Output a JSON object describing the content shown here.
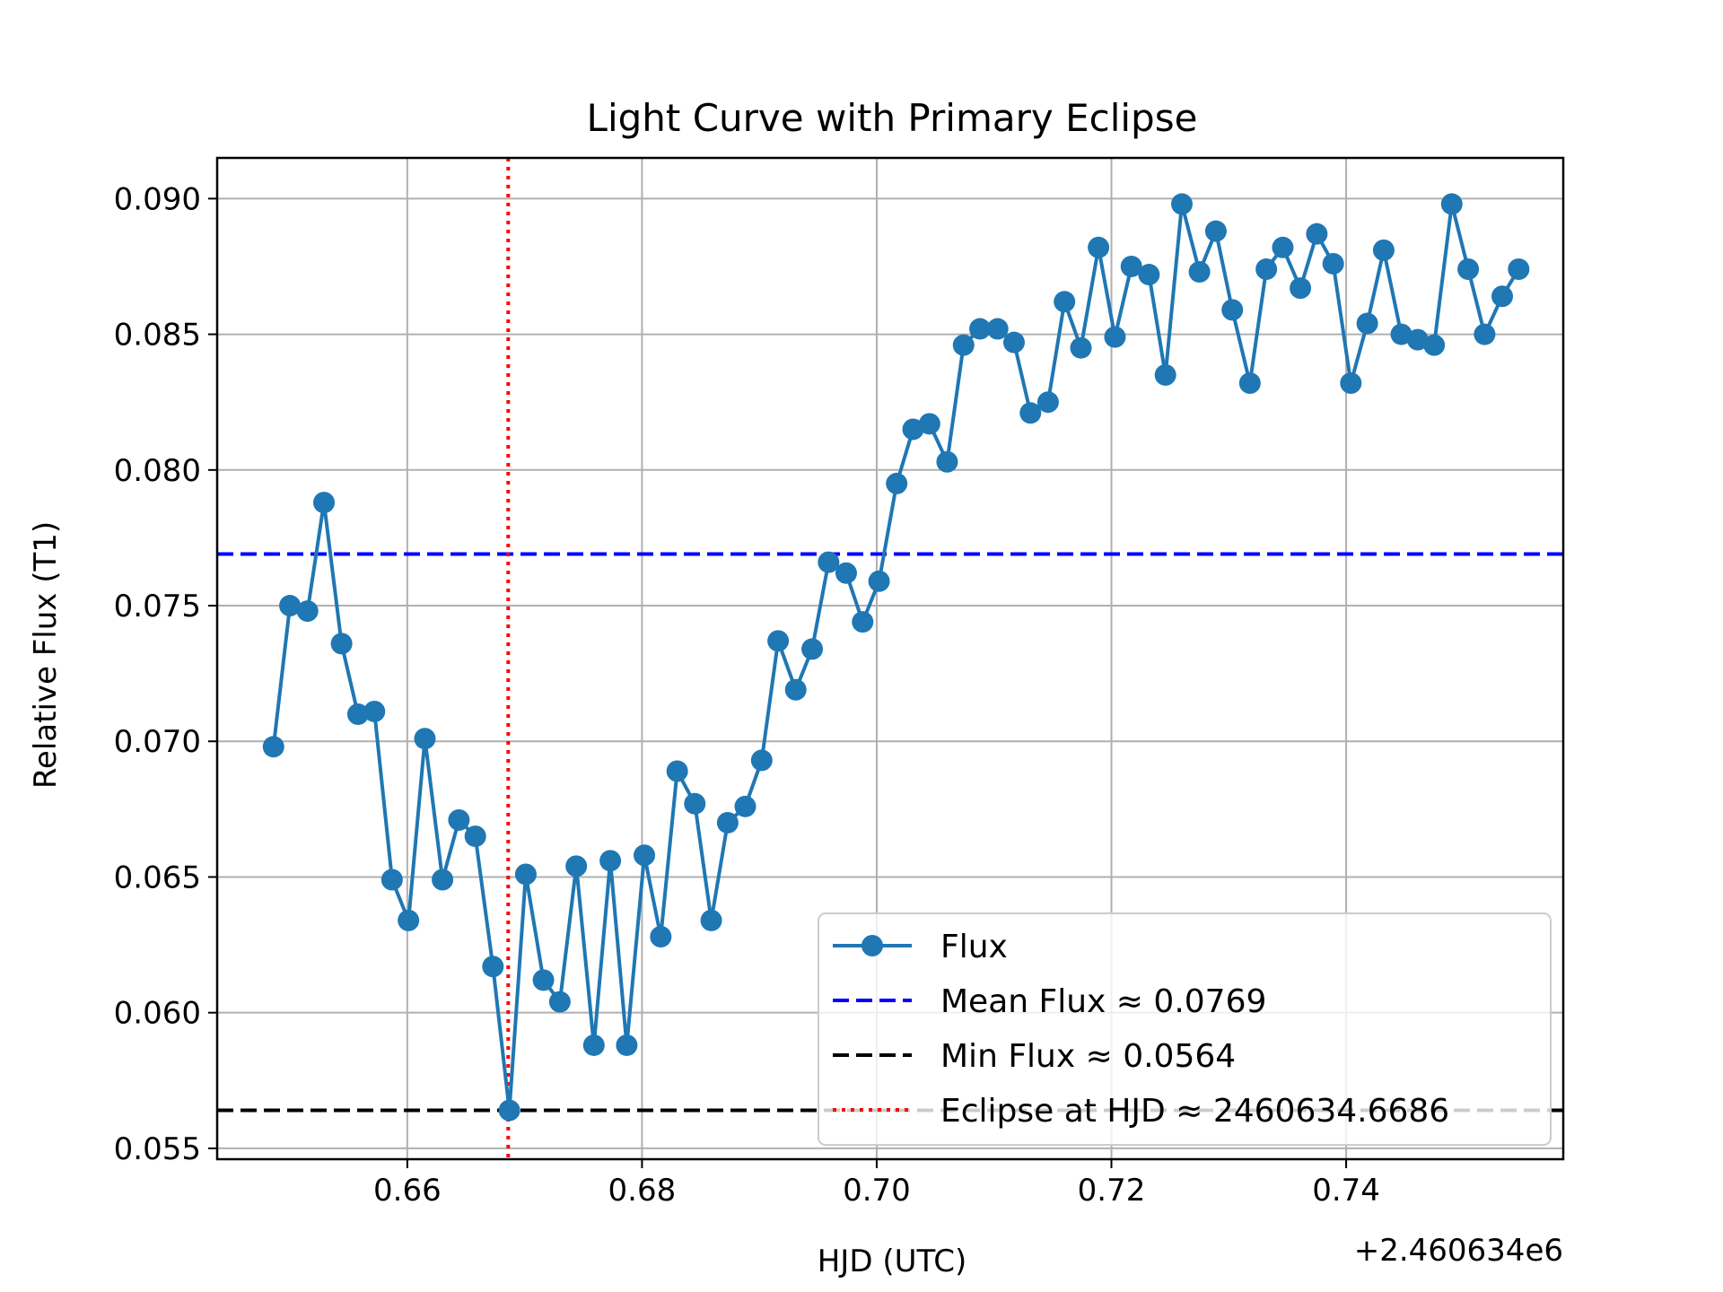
{
  "chart_data": {
    "type": "line",
    "title": "Light Curve with Primary Eclipse",
    "xlabel": "HJD (UTC)",
    "ylabel": "Relative Flux (T1)",
    "x_offset_label": "+2.460634e6",
    "xlim": [
      0.6438,
      0.7585
    ],
    "ylim": [
      0.0546,
      0.0915
    ],
    "x_ticks": [
      0.66,
      0.68,
      0.7,
      0.72,
      0.74
    ],
    "x_tick_labels": [
      "0.66",
      "0.68",
      "0.70",
      "0.72",
      "0.74"
    ],
    "y_ticks": [
      0.055,
      0.06,
      0.065,
      0.07,
      0.075,
      0.08,
      0.085,
      0.09
    ],
    "y_tick_labels": [
      "0.055",
      "0.060",
      "0.065",
      "0.070",
      "0.075",
      "0.080",
      "0.085",
      "0.090"
    ],
    "grid": true,
    "legend_position": "lower-right",
    "series": [
      {
        "name": "Flux",
        "color": "#1f77b4",
        "style": "line-with-markers",
        "x": [
          0.6486,
          0.65,
          0.6515,
          0.6529,
          0.6544,
          0.6558,
          0.6572,
          0.6587,
          0.6601,
          0.6615,
          0.663,
          0.6644,
          0.6658,
          0.6673,
          0.6687,
          0.6701,
          0.6716,
          0.673,
          0.6744,
          0.6759,
          0.6773,
          0.6787,
          0.6802,
          0.6816,
          0.683,
          0.6845,
          0.6859,
          0.6873,
          0.6888,
          0.6902,
          0.6916,
          0.6931,
          0.6945,
          0.6959,
          0.6974,
          0.6988,
          0.7002,
          0.7017,
          0.7031,
          0.7045,
          0.706,
          0.7074,
          0.7088,
          0.7103,
          0.7117,
          0.7131,
          0.7146,
          0.716,
          0.7174,
          0.7189,
          0.7203,
          0.7217,
          0.7232,
          0.7246,
          0.726,
          0.7275,
          0.7289,
          0.7303,
          0.7318,
          0.7332,
          0.7346,
          0.7361,
          0.7375,
          0.7389,
          0.7404,
          0.7418,
          0.7432,
          0.7447,
          0.7461,
          0.7475,
          0.749,
          0.7504,
          0.7518,
          0.7533,
          0.7547
        ],
        "y": [
          0.0698,
          0.075,
          0.0748,
          0.0788,
          0.0736,
          0.071,
          0.0711,
          0.0649,
          0.0634,
          0.0701,
          0.0649,
          0.0671,
          0.0665,
          0.0617,
          0.0564,
          0.0651,
          0.0612,
          0.0604,
          0.0654,
          0.0588,
          0.0656,
          0.0588,
          0.0658,
          0.0628,
          0.0689,
          0.0677,
          0.0634,
          0.067,
          0.0676,
          0.0693,
          0.0737,
          0.0719,
          0.0734,
          0.0766,
          0.0762,
          0.0744,
          0.0759,
          0.0795,
          0.0815,
          0.0817,
          0.0803,
          0.0846,
          0.0852,
          0.0852,
          0.0847,
          0.0821,
          0.0825,
          0.0862,
          0.0845,
          0.0882,
          0.0849,
          0.0875,
          0.0872,
          0.0835,
          0.0898,
          0.0873,
          0.0888,
          0.0859,
          0.0832,
          0.0874,
          0.0882,
          0.0867,
          0.0887,
          0.0876,
          0.0832,
          0.0854,
          0.0881,
          0.085,
          0.0848,
          0.0846,
          0.0898,
          0.0874,
          0.085,
          0.0864,
          0.0874
        ]
      }
    ],
    "reference_lines": [
      {
        "name": "Mean Flux ≈ 0.0769",
        "orientation": "horizontal",
        "value": 0.0769,
        "color": "#0000ff",
        "style": "dashed"
      },
      {
        "name": "Min Flux ≈ 0.0564",
        "orientation": "horizontal",
        "value": 0.0564,
        "color": "#000000",
        "style": "dashed"
      },
      {
        "name": "Eclipse at HJD ≈ 2460634.6686",
        "orientation": "vertical",
        "value": 0.6686,
        "color": "#ff0000",
        "style": "dotted"
      }
    ],
    "legend": [
      {
        "label": "Flux",
        "color": "#1f77b4",
        "style": "line-with-markers"
      },
      {
        "label": "Mean Flux ≈ 0.0769",
        "color": "#0000ff",
        "style": "dashed"
      },
      {
        "label": "Min Flux ≈ 0.0564",
        "color": "#000000",
        "style": "dashed"
      },
      {
        "label": "Eclipse at HJD ≈ 2460634.6686",
        "color": "#ff0000",
        "style": "dotted"
      }
    ]
  }
}
